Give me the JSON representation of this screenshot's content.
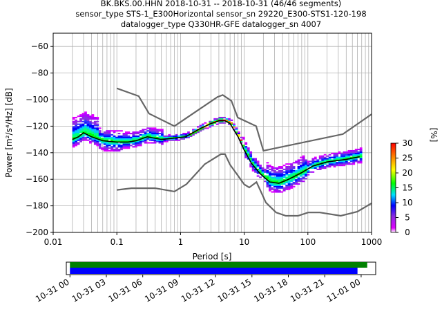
{
  "title_lines": [
    "BK.BKS.00.HHN   2018-10-31 -- 2018-10-31  (46/46 segments)",
    "sensor_type STS-1_E300Horizontal sensor_sn 29220_E300-STS1-120-198",
    "datalogger_type Q330HR-GFE datalogger_sn 4007"
  ],
  "colors": {
    "noise_model": "#666666",
    "mode_line": "#000000",
    "grid": "#b0b0b0",
    "coverage_top": "#008000",
    "coverage_bottom": "#0000ff"
  },
  "chart_data": [
    {
      "type": "heatmap",
      "xlabel": "Period [s]",
      "ylabel": "Power [m²/s⁴/Hz] [dB]",
      "xscale": "log",
      "xlim": [
        0.01,
        1000
      ],
      "ylim": [
        -200,
        -50
      ],
      "x_ticks": [
        {
          "value": 0.01,
          "label": "0.01"
        },
        {
          "value": 0.1,
          "label": "0.1"
        },
        {
          "value": 1,
          "label": "1"
        },
        {
          "value": 10,
          "label": "10"
        },
        {
          "value": 100,
          "label": "100"
        },
        {
          "value": 1000,
          "label": "1000"
        }
      ],
      "y_ticks": [
        {
          "value": -60,
          "label": "−60"
        },
        {
          "value": -80,
          "label": "−80"
        },
        {
          "value": -100,
          "label": "−100"
        },
        {
          "value": -120,
          "label": "−120"
        },
        {
          "value": -140,
          "label": "−140"
        },
        {
          "value": -160,
          "label": "−160"
        },
        {
          "value": -180,
          "label": "−180"
        },
        {
          "value": -200,
          "label": "−200"
        }
      ],
      "grid": true,
      "noise_models": [
        {
          "name": "NHNM",
          "points": [
            [
              0.1,
              -91.5
            ],
            [
              0.22,
              -97.4
            ],
            [
              0.32,
              -110.5
            ],
            [
              0.8,
              -120
            ],
            [
              3.8,
              -98
            ],
            [
              4.6,
              -96.5
            ],
            [
              6.3,
              -101
            ],
            [
              7.9,
              -113.5
            ],
            [
              15.4,
              -120
            ],
            [
              20,
              -138.5
            ],
            [
              354.8,
              -126
            ],
            [
              1000,
              -111
            ]
          ]
        },
        {
          "name": "NLNM",
          "points": [
            [
              0.1,
              -168
            ],
            [
              0.17,
              -166.7
            ],
            [
              0.4,
              -166.7
            ],
            [
              0.8,
              -169.2
            ],
            [
              1.24,
              -163.7
            ],
            [
              2.4,
              -148.6
            ],
            [
              4.3,
              -141.1
            ],
            [
              5,
              -141.1
            ],
            [
              6,
              -149
            ],
            [
              10,
              -163.8
            ],
            [
              12,
              -166.2
            ],
            [
              15.6,
              -162.1
            ],
            [
              21.9,
              -177.5
            ],
            [
              31.6,
              -185
            ],
            [
              45,
              -187.5
            ],
            [
              70,
              -187.5
            ],
            [
              101,
              -185
            ],
            [
              154,
              -185
            ],
            [
              328,
              -187.5
            ],
            [
              600,
              -184.4
            ],
            [
              1000,
              -178
            ]
          ]
        }
      ],
      "mode_line": {
        "points": [
          [
            0.02,
            -130
          ],
          [
            0.025,
            -128
          ],
          [
            0.03,
            -125
          ],
          [
            0.04,
            -128
          ],
          [
            0.06,
            -131
          ],
          [
            0.1,
            -132
          ],
          [
            0.15,
            -132
          ],
          [
            0.2,
            -131
          ],
          [
            0.3,
            -128
          ],
          [
            0.5,
            -130
          ],
          [
            0.8,
            -129
          ],
          [
            1.2,
            -128
          ],
          [
            2,
            -122
          ],
          [
            3,
            -118
          ],
          [
            4,
            -116
          ],
          [
            5,
            -116
          ],
          [
            6,
            -118
          ],
          [
            8,
            -128
          ],
          [
            10,
            -138
          ],
          [
            13,
            -148
          ],
          [
            18,
            -156
          ],
          [
            25,
            -162
          ],
          [
            35,
            -163
          ],
          [
            50,
            -160
          ],
          [
            80,
            -155
          ],
          [
            120,
            -150
          ],
          [
            200,
            -147
          ],
          [
            400,
            -145
          ],
          [
            650,
            -143
          ]
        ]
      },
      "colorbar": {
        "label": "[%]",
        "min": 0,
        "max": 30,
        "ticks": [
          {
            "value": 0,
            "label": "0"
          },
          {
            "value": 5,
            "label": "5"
          },
          {
            "value": 10,
            "label": "10"
          },
          {
            "value": 15,
            "label": "15"
          },
          {
            "value": 20,
            "label": "20"
          },
          {
            "value": 25,
            "label": "25"
          },
          {
            "value": 30,
            "label": "30"
          }
        ]
      }
    },
    {
      "type": "bar",
      "name": "data-coverage",
      "xlim_hours": [
        -0.3,
        25.2
      ],
      "x_ticks": [
        {
          "value": 0,
          "label": "10-31 00"
        },
        {
          "value": 3,
          "label": "10-31 03"
        },
        {
          "value": 6,
          "label": "10-31 06"
        },
        {
          "value": 9,
          "label": "10-31 09"
        },
        {
          "value": 12,
          "label": "10-31 12"
        },
        {
          "value": 15,
          "label": "10-31 15"
        },
        {
          "value": 18,
          "label": "10-31 18"
        },
        {
          "value": 21,
          "label": "10-31 21"
        },
        {
          "value": 24,
          "label": "11-01 00"
        }
      ],
      "bars": [
        {
          "start_hours": 0,
          "end_hours": 24.5,
          "row": "top"
        },
        {
          "start_hours": 0,
          "end_hours": 23.7,
          "row": "bottom"
        }
      ]
    }
  ]
}
